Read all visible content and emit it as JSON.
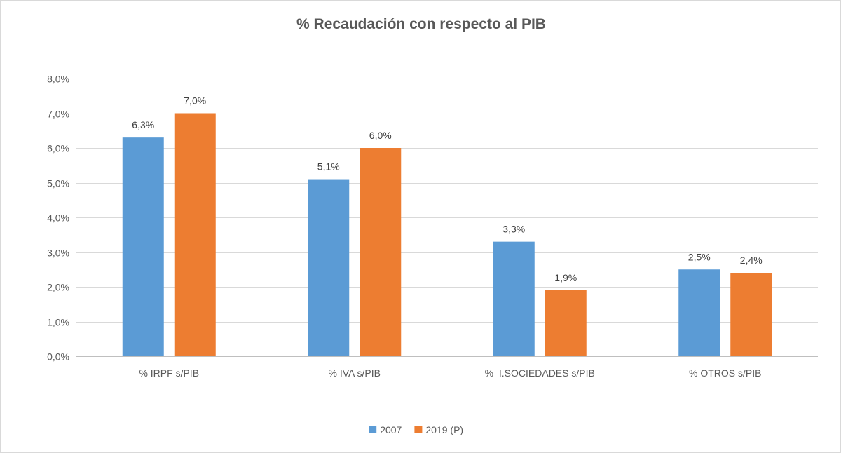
{
  "chart_data": {
    "type": "bar",
    "title": "% Recaudación con respecto al PIB",
    "categories": [
      "% IRPF s/PIB",
      "% IVA s/PIB",
      "%  I.SOCIEDADES s/PIB",
      "% OTROS s/PIB"
    ],
    "series": [
      {
        "name": "2007",
        "color": "#5b9bd5",
        "values": [
          6.3,
          5.1,
          3.3,
          2.5
        ],
        "labels": [
          "6,3%",
          "5,1%",
          "3,3%",
          "2,5%"
        ]
      },
      {
        "name": "2019 (P)",
        "color": "#ed7d31",
        "values": [
          7.0,
          6.0,
          1.9,
          2.4
        ],
        "labels": [
          "7,0%",
          "6,0%",
          "1,9%",
          "2,4%"
        ]
      }
    ],
    "ylim": [
      0,
      8
    ],
    "ytick_values": [
      0,
      1,
      2,
      3,
      4,
      5,
      6,
      7,
      8
    ],
    "ytick_labels": [
      "0,0%",
      "1,0%",
      "2,0%",
      "3,0%",
      "4,0%",
      "5,0%",
      "6,0%",
      "7,0%",
      "8,0%"
    ],
    "xlabel": "",
    "ylabel": "",
    "grid": true,
    "legend_position": "bottom-center"
  }
}
